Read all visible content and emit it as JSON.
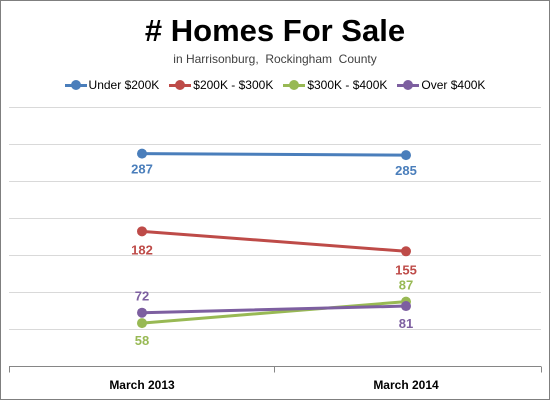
{
  "chart_data": {
    "type": "line",
    "title": "# Homes For Sale",
    "subtitle": "in Harrisonburg,  Rockingham  County",
    "categories": [
      "March 2013",
      "March 2014"
    ],
    "ylim": [
      0,
      350
    ],
    "grid": true,
    "legend_position": "top",
    "series": [
      {
        "name": "Under $200K",
        "values": [
          287,
          285
        ],
        "color": "#4a7ebb"
      },
      {
        "name": "$200K - $300K",
        "values": [
          182,
          155
        ],
        "color": "#be4b48"
      },
      {
        "name": "$300K - $400K",
        "values": [
          58,
          87
        ],
        "color": "#98b954"
      },
      {
        "name": "Over $400K",
        "values": [
          72,
          81
        ],
        "color": "#7d5fa0"
      }
    ]
  }
}
